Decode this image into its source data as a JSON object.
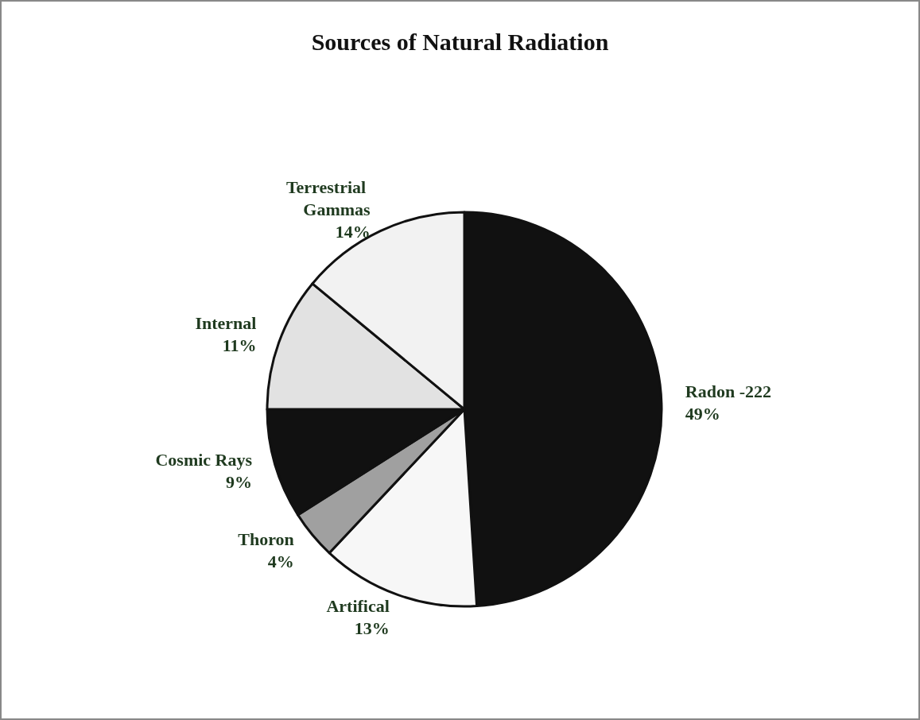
{
  "chart_data": {
    "type": "pie",
    "title": "Sources of Natural Radiation",
    "categories": [
      "Radon -222",
      "Artifical",
      "Thoron",
      "Cosmic Rays",
      "Internal",
      "Terrestrial Gammas"
    ],
    "values": [
      49,
      13,
      4,
      9,
      11,
      14
    ],
    "colors": [
      "#111111",
      "#f7f7f7",
      "#a0a0a0",
      "#111111",
      "#e2e2e2",
      "#f2f2f2"
    ],
    "value_labels": [
      "49%",
      "13%",
      "4%",
      "9%",
      "11%",
      "14%"
    ],
    "legend": false
  }
}
